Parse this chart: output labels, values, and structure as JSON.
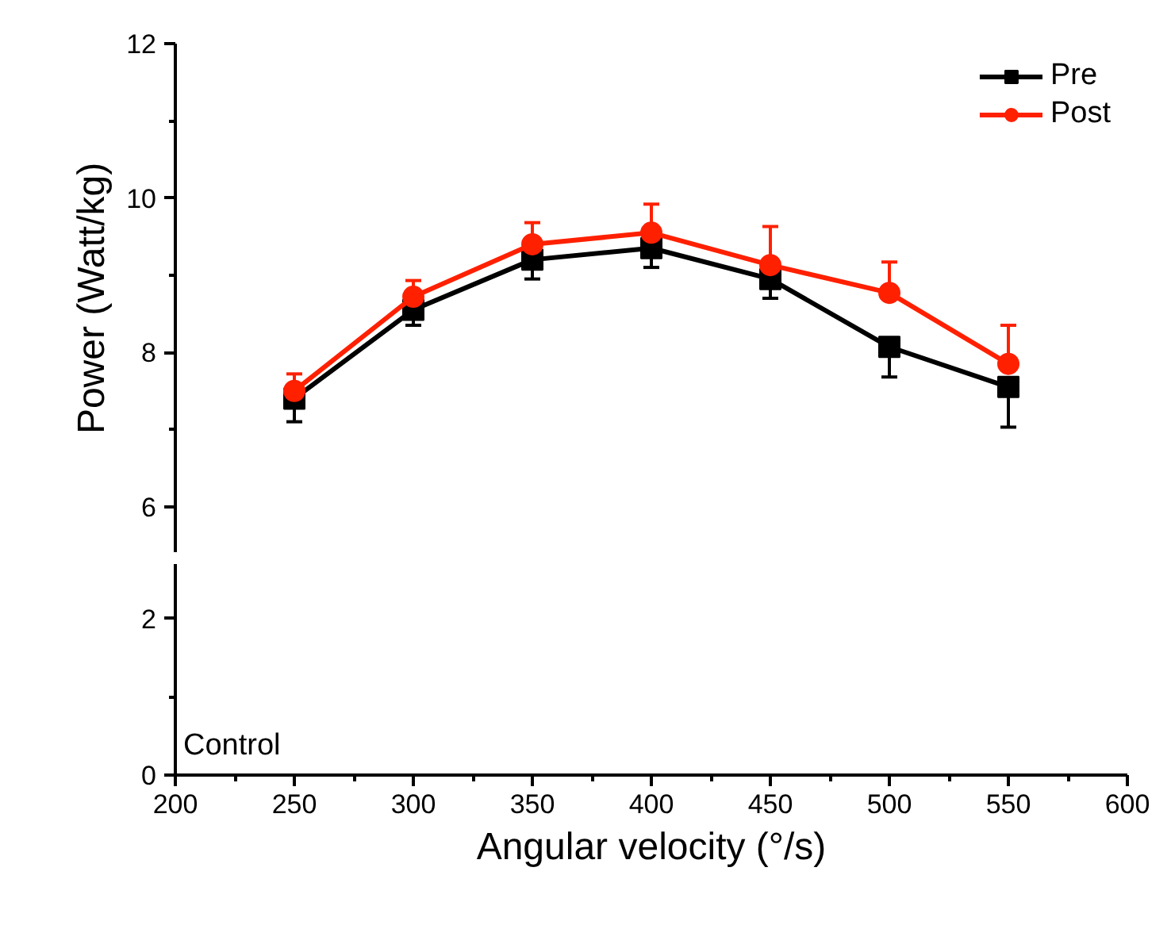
{
  "chart_data": [
    {
      "type": "line",
      "ylabel": "Power (Watt/kg)",
      "x": [
        250,
        300,
        350,
        400,
        450,
        500,
        550
      ],
      "xlim": [
        200,
        600
      ],
      "ylim": [
        5.4,
        12
      ],
      "yticks": [
        6,
        8,
        10,
        12
      ],
      "tick_labels": "y",
      "legend": "top right",
      "line_style": "solid",
      "grid": false,
      "series": [
        {
          "name": "Pre",
          "color": "#000000",
          "marker": "square",
          "values": [
            7.4,
            8.55,
            9.2,
            9.35,
            8.95,
            8.07,
            7.55
          ],
          "errors": [
            [
              7.1,
              7.4
            ],
            [
              8.35,
              8.55
            ],
            [
              8.95,
              9.2
            ],
            [
              9.1,
              9.35
            ],
            [
              8.7,
              8.95
            ],
            [
              7.68,
              8.07
            ],
            [
              7.03,
              7.55
            ]
          ]
        },
        {
          "name": "Post",
          "color": "#ff2000",
          "marker": "circle",
          "values": [
            7.5,
            8.72,
            9.4,
            9.55,
            9.13,
            8.77,
            7.85
          ],
          "errors": [
            [
              7.5,
              7.72
            ],
            [
              8.72,
              8.93
            ],
            [
              9.4,
              9.68
            ],
            [
              9.55,
              9.92
            ],
            [
              9.13,
              9.63
            ],
            [
              8.77,
              9.17
            ],
            [
              7.85,
              8.35
            ]
          ]
        }
      ]
    },
    {
      "type": "line",
      "xlabel": "Angular velocity (°/s)",
      "xlim": [
        200,
        600
      ],
      "xticks": [
        200,
        250,
        300,
        350,
        400,
        450,
        500,
        550,
        600
      ],
      "ylim": [
        0,
        2.7
      ],
      "yticks": [
        0,
        2
      ],
      "grid": false,
      "annotations": [
        "Control"
      ]
    }
  ]
}
